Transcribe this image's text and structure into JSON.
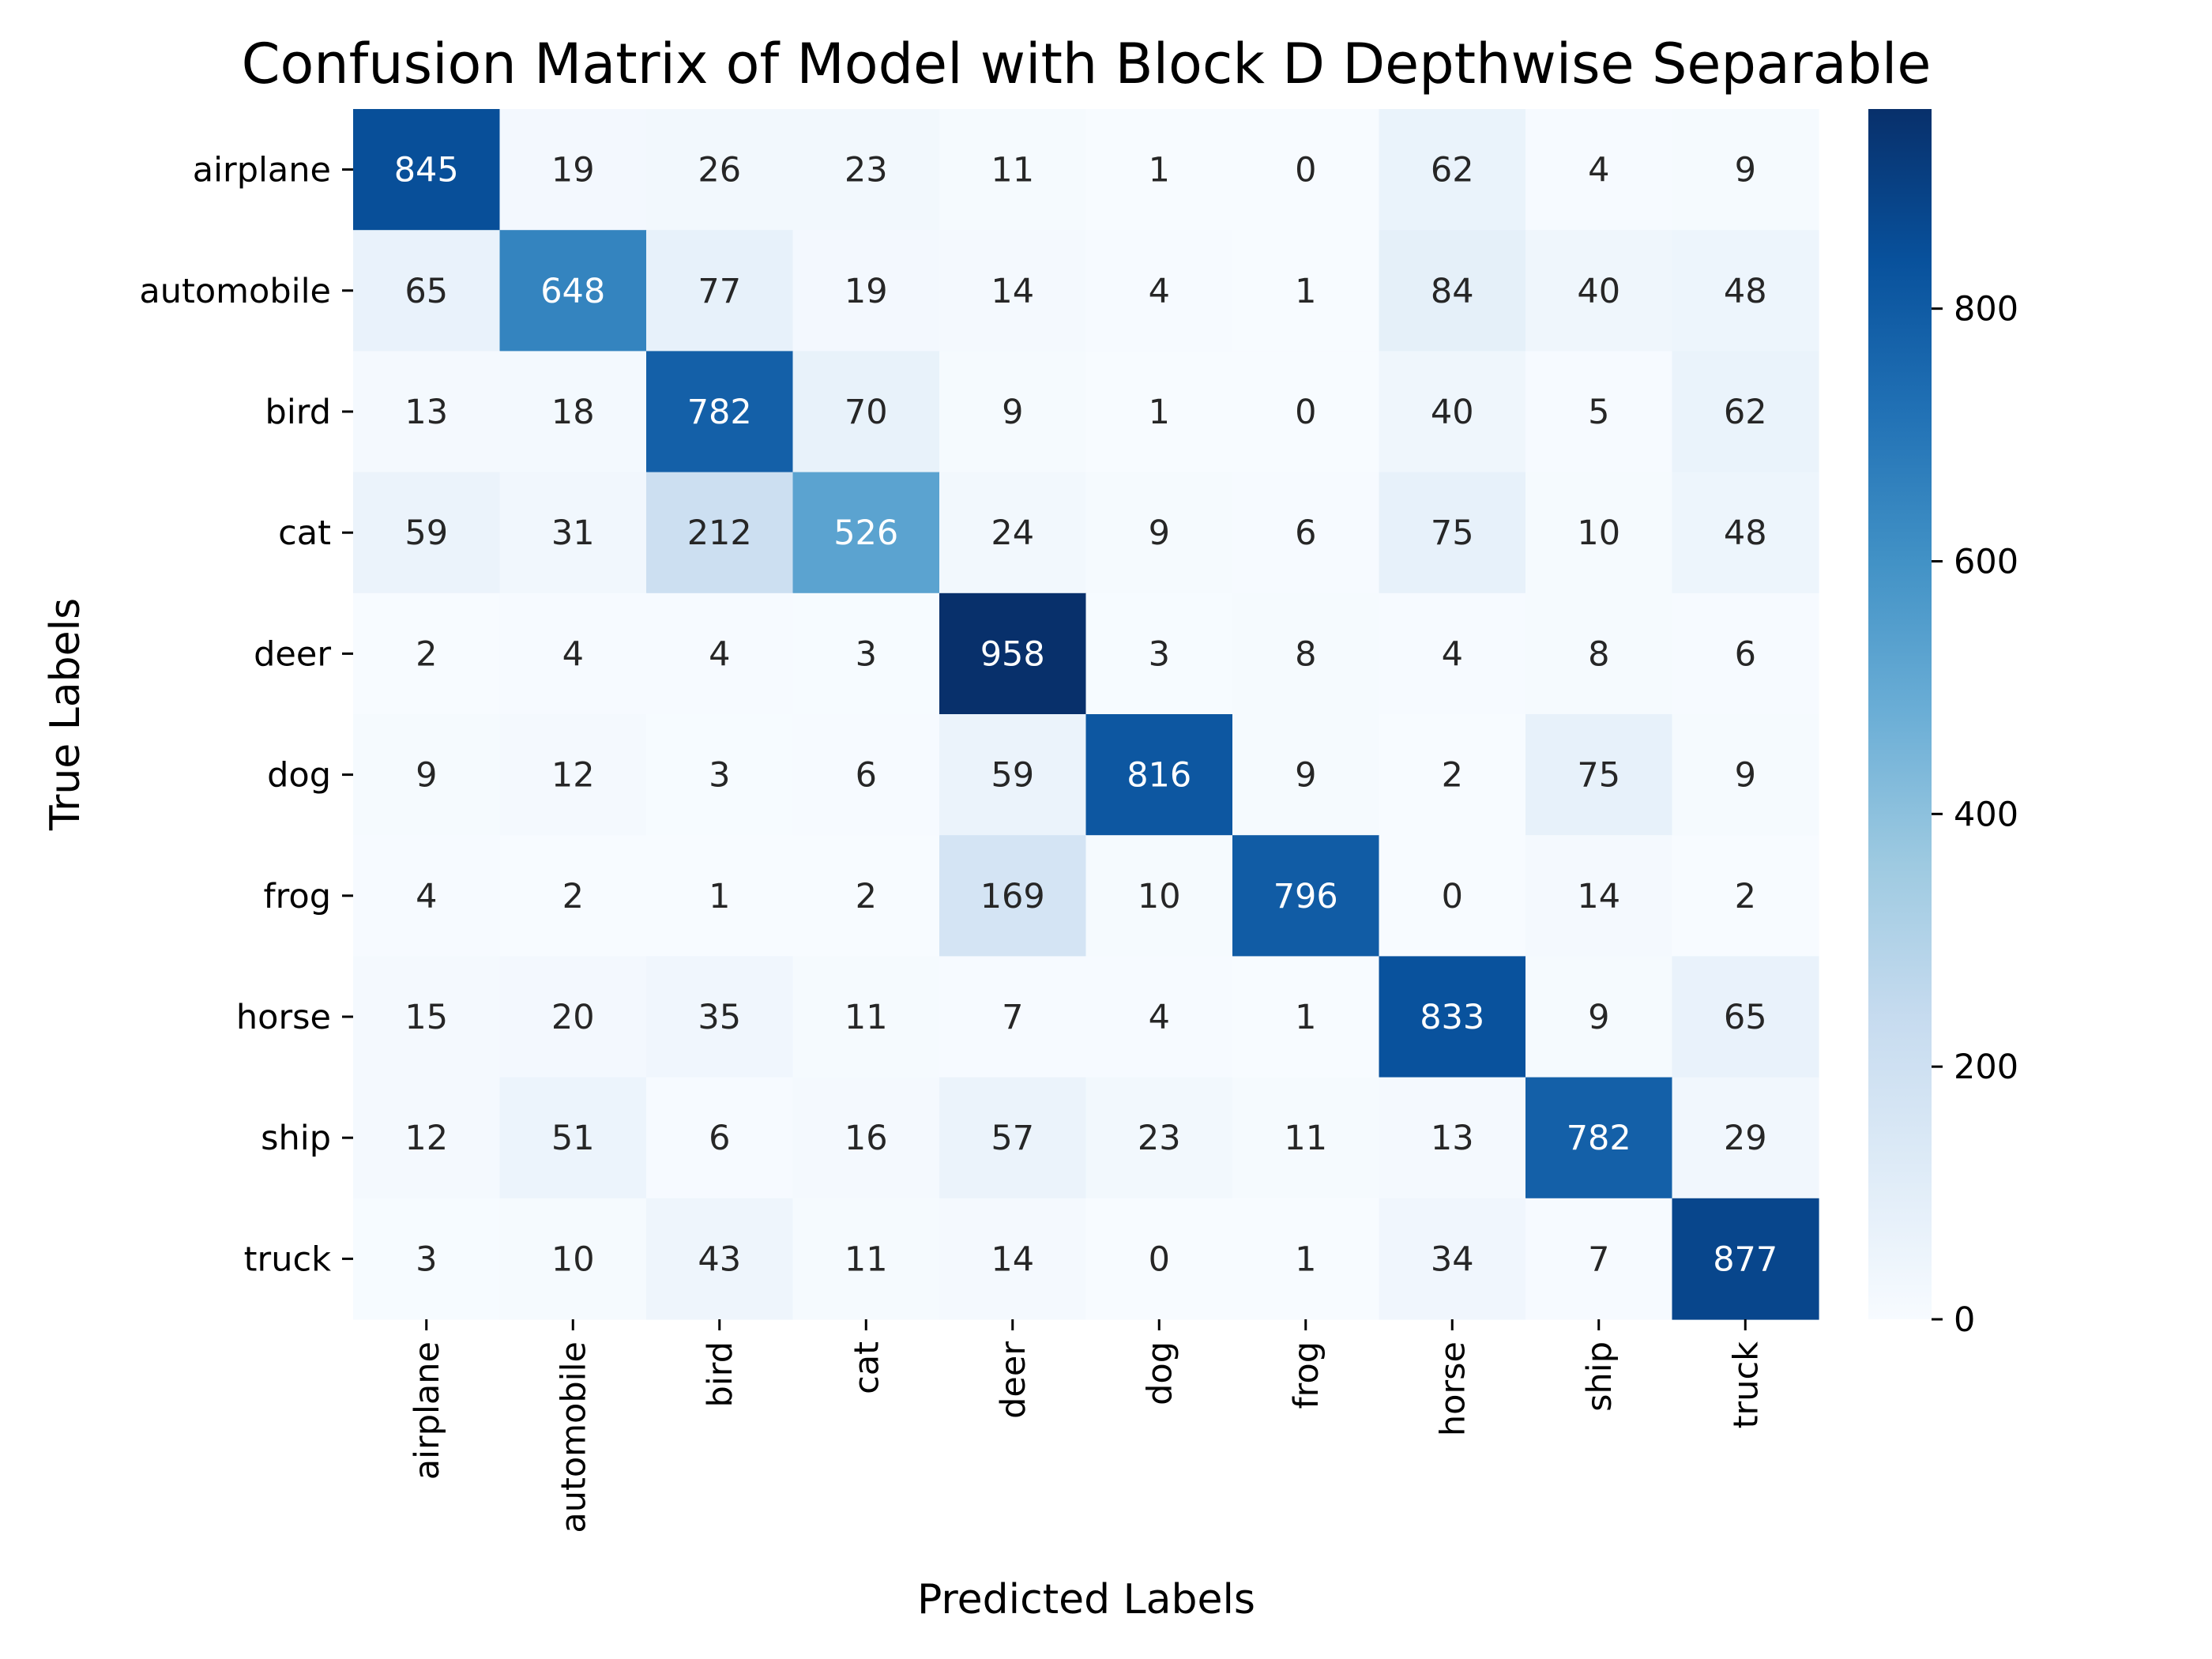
{
  "chart_data": {
    "type": "heatmap",
    "title": "Confusion Matrix of Model with Block D Depthwise Separable",
    "xlabel": "Predicted Labels",
    "ylabel": "True Labels",
    "x_categories": [
      "airplane",
      "automobile",
      "bird",
      "cat",
      "deer",
      "dog",
      "frog",
      "horse",
      "ship",
      "truck"
    ],
    "y_categories": [
      "airplane",
      "automobile",
      "bird",
      "cat",
      "deer",
      "dog",
      "frog",
      "horse",
      "ship",
      "truck"
    ],
    "values": [
      [
        845,
        19,
        26,
        23,
        11,
        1,
        0,
        62,
        4,
        9
      ],
      [
        65,
        648,
        77,
        19,
        14,
        4,
        1,
        84,
        40,
        48
      ],
      [
        13,
        18,
        782,
        70,
        9,
        1,
        0,
        40,
        5,
        62
      ],
      [
        59,
        31,
        212,
        526,
        24,
        9,
        6,
        75,
        10,
        48
      ],
      [
        2,
        4,
        4,
        3,
        958,
        3,
        8,
        4,
        8,
        6
      ],
      [
        9,
        12,
        3,
        6,
        59,
        816,
        9,
        2,
        75,
        9
      ],
      [
        4,
        2,
        1,
        2,
        169,
        10,
        796,
        0,
        14,
        2
      ],
      [
        15,
        20,
        35,
        11,
        7,
        4,
        1,
        833,
        9,
        65
      ],
      [
        12,
        51,
        6,
        16,
        57,
        23,
        11,
        13,
        782,
        29
      ],
      [
        3,
        10,
        43,
        11,
        14,
        0,
        1,
        34,
        7,
        877
      ]
    ],
    "colorbar": {
      "min": 0,
      "max": 958,
      "ticks": [
        0,
        200,
        400,
        600,
        800
      ],
      "colormap": "Blues"
    },
    "colors": {
      "low": "#f7fbff",
      "high": "#08306b",
      "text_dark": "#262626",
      "text_light": "#ffffff"
    }
  }
}
